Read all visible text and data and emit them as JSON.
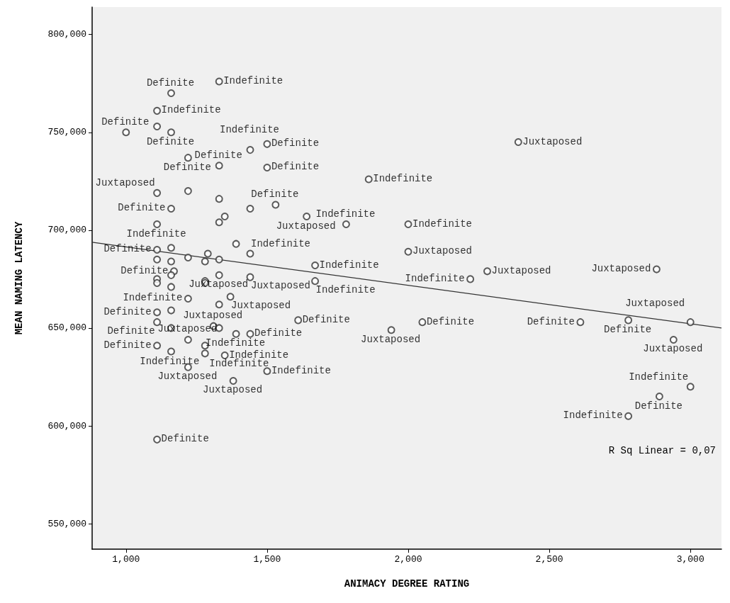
{
  "chart_data": {
    "type": "scatter",
    "xlabel": "ANIMACY DEGREE RATING",
    "ylabel": "MEAN NAMING LATENCY",
    "xlim": [
      880,
      3110
    ],
    "ylim": [
      537000,
      814000
    ],
    "xticks": [
      {
        "value": 1000,
        "label": "1,000"
      },
      {
        "value": 1500,
        "label": "1,500"
      },
      {
        "value": 2000,
        "label": "2,000"
      },
      {
        "value": 2500,
        "label": "2,500"
      },
      {
        "value": 3000,
        "label": "3,000"
      }
    ],
    "yticks": [
      {
        "value": 550000,
        "label": "550,000"
      },
      {
        "value": 600000,
        "label": "600,000"
      },
      {
        "value": 650000,
        "label": "650,000"
      },
      {
        "value": 700000,
        "label": "700,000"
      },
      {
        "value": 750000,
        "label": "750,000"
      },
      {
        "value": 800000,
        "label": "800,000"
      }
    ],
    "grid": false,
    "marker": "circle",
    "series": [
      {
        "color": "#333333",
        "x": [
          1330,
          1160,
          1110,
          1110,
          1000,
          1160,
          1500,
          1440,
          1220,
          1330,
          1500,
          1110,
          1220,
          1330,
          1440,
          1530,
          1160,
          1350,
          1330,
          1110,
          1390,
          1440,
          1110,
          1160,
          1110,
          1160,
          1220,
          1280,
          1290,
          1330,
          1170,
          1110,
          1110,
          1160,
          1160,
          1280,
          1280,
          1330,
          1440,
          1220,
          1370,
          1330,
          1110,
          1110,
          1160,
          1160,
          1310,
          1330,
          1390,
          1440,
          1220,
          1110,
          1160,
          1280,
          1280,
          1350,
          1220,
          1500,
          1380,
          1110,
          1860,
          1640,
          1780,
          2000,
          2000,
          1670,
          2280,
          1670,
          2220,
          1610,
          2050,
          1940,
          2390,
          2880,
          2610,
          2780,
          3000,
          2940,
          3000,
          2890,
          2780
        ],
        "values": [
          776000,
          770000,
          761000,
          753000,
          750000,
          750000,
          744000,
          741000,
          737000,
          733000,
          732000,
          719000,
          720000,
          716000,
          711000,
          713000,
          711000,
          707000,
          704000,
          703000,
          693000,
          688000,
          690000,
          691000,
          685000,
          684000,
          686000,
          684000,
          688000,
          685000,
          679000,
          675000,
          673000,
          677000,
          671000,
          674000,
          673000,
          677000,
          676000,
          665000,
          666000,
          662000,
          658000,
          653000,
          659000,
          650000,
          651000,
          650000,
          647000,
          647000,
          644000,
          641000,
          638000,
          641000,
          637000,
          636000,
          630000,
          628000,
          623000,
          593000,
          726000,
          707000,
          703000,
          703000,
          689000,
          682000,
          679000,
          674000,
          675000,
          654000,
          653000,
          649000,
          745000,
          680000,
          653000,
          654000,
          653000,
          644000,
          620000,
          615000,
          605000
        ],
        "value_labels": [
          "Indefinite",
          "Definite",
          "Indefinite",
          null,
          "Definite",
          "Definite",
          "Definite",
          "Indefinite",
          "Definite",
          "Definite",
          "Definite",
          "Juxtaposed",
          null,
          null,
          null,
          "Definite",
          "Definite",
          null,
          null,
          "Indefinite",
          null,
          "Indefinite",
          "Definite",
          null,
          null,
          null,
          null,
          null,
          null,
          null,
          "Definite",
          null,
          null,
          null,
          null,
          null,
          null,
          "Juxtaposed",
          "Juxtaposed",
          "Indefinite",
          "Juxtaposed",
          null,
          "Definite",
          "Definite",
          null,
          null,
          "Juxtaposed",
          null,
          "Indefinite",
          "Definite",
          "Juxtaposed",
          "Definite",
          null,
          "Indefinite",
          "Indefinite",
          "Indefinite",
          "Juxtaposed",
          "Indefinite",
          "Juxtaposed",
          "Definite",
          "Indefinite",
          "Juxtaposed",
          "Indefinite",
          "Indefinite",
          "Juxtaposed",
          "Indefinite",
          "Juxtaposed",
          "Indefinite",
          "Indefinite",
          "Definite",
          "Definite",
          "Juxtaposed",
          "Juxtaposed",
          "Juxtaposed",
          "Definite",
          "Definite",
          "Juxtaposed",
          "Juxtaposed",
          "Indefinite",
          "Definite",
          "Indefinite"
        ]
      },
      {
        "type": "line",
        "color": "#333333",
        "x": [
          880,
          3110
        ],
        "values": [
          693800,
          650000
        ],
        "marker": "none"
      }
    ],
    "annotations": [
      "R Sq Linear = 0,07"
    ]
  }
}
